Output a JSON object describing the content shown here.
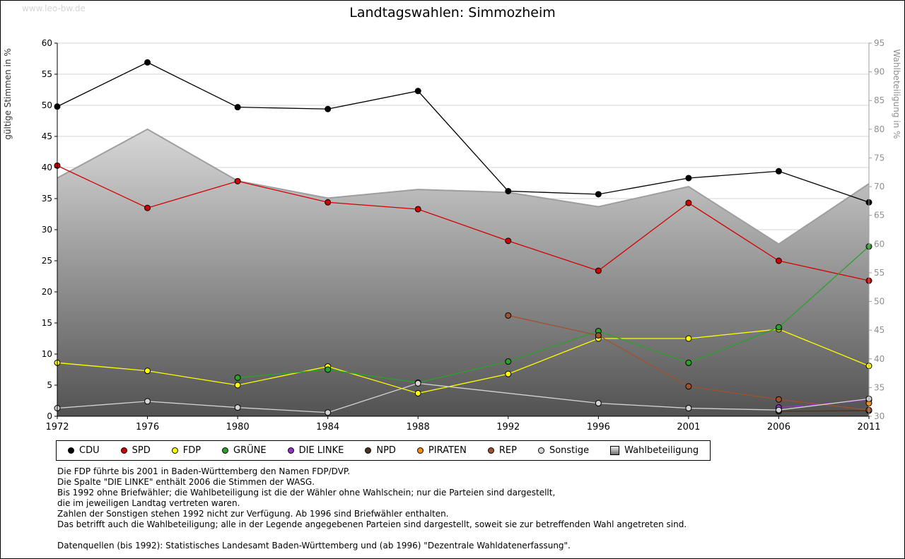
{
  "watermark": "www.leo-bw.de",
  "chart_data": {
    "type": "line",
    "title": "Landtagswahlen: Simmozheim",
    "x_categories": [
      "1972",
      "1976",
      "1980",
      "1984",
      "1988",
      "1992",
      "1996",
      "2001",
      "2006",
      "2011"
    ],
    "ylabel_left": "gültige Stimmen in %",
    "ylabel_right": "Wahlbeteiligung in %",
    "ylim_left": [
      0,
      60
    ],
    "ylim_right": [
      30,
      95
    ],
    "ytick_step": 5,
    "grid": "horizontal",
    "legend_position": "bottom",
    "area_series": {
      "name": "Wahlbeteiligung",
      "axis": "right",
      "line_color": "#9e9e9e",
      "legend_color": "#c8c8c8",
      "values": [
        71.5,
        80,
        71,
        68,
        69.5,
        69,
        66.5,
        70,
        60,
        70.5
      ]
    },
    "series": [
      {
        "name": "CDU",
        "color": "#000000",
        "values": [
          49.8,
          56.9,
          49.7,
          49.4,
          52.3,
          36.2,
          35.7,
          38.3,
          39.4,
          34.4
        ]
      },
      {
        "name": "SPD",
        "color": "#d40000",
        "values": [
          40.3,
          33.5,
          37.8,
          34.4,
          33.3,
          28.2,
          23.4,
          34.3,
          25.0,
          21.8
        ]
      },
      {
        "name": "FDP",
        "color": "#ffff00",
        "values": [
          8.6,
          7.3,
          5.0,
          8.0,
          3.7,
          6.8,
          12.5,
          12.5,
          14.0,
          8.1
        ]
      },
      {
        "name": "GRÜNE",
        "color": "#2ca02c",
        "values": [
          null,
          null,
          6.2,
          7.5,
          5.4,
          8.8,
          13.7,
          8.6,
          14.3,
          27.3
        ]
      },
      {
        "name": "DIE LINKE",
        "color": "#9333cc",
        "values": [
          null,
          null,
          null,
          null,
          null,
          null,
          null,
          null,
          1.4,
          2.6
        ]
      },
      {
        "name": "NPD",
        "color": "#4d3319",
        "values": [
          null,
          null,
          null,
          null,
          null,
          null,
          null,
          null,
          0.8,
          0.9
        ]
      },
      {
        "name": "PIRATEN",
        "color": "#ff8c00",
        "values": [
          null,
          null,
          null,
          null,
          null,
          null,
          null,
          null,
          null,
          2.1
        ]
      },
      {
        "name": "REP",
        "color": "#a0522d",
        "values": [
          null,
          null,
          null,
          null,
          null,
          16.2,
          13.0,
          4.8,
          2.7,
          1.0
        ]
      },
      {
        "name": "Sonstige",
        "color": "#d3d3d3",
        "values": [
          1.3,
          2.4,
          1.4,
          0.6,
          5.3,
          null,
          2.1,
          1.3,
          1.0,
          2.8
        ]
      }
    ]
  },
  "footnotes": [
    "Die FDP führte bis 2001 in Baden-Württemberg den Namen FDP/DVP.",
    "Die Spalte \"DIE LINKE\" enthält 2006 die Stimmen der WASG.",
    "Bis 1992 ohne Briefwähler; die Wahlbeteiligung ist die der Wähler ohne Wahlschein; nur die Parteien sind dargestellt,",
    "die im jeweiligen Landtag vertreten waren.",
    "Zahlen der Sonstigen stehen 1992 nicht zur Verfügung. Ab 1996 sind Briefwähler enthalten.",
    "Das betrifft auch die Wahlbeteiligung; alle in der Legende angegebenen Parteien sind dargestellt, soweit sie zur betreffenden Wahl angetreten sind.",
    "",
    "Datenquellen (bis 1992): Statistisches Landesamt Baden-Württemberg und (ab 1996) \"Dezentrale Wahldatenerfassung\"."
  ]
}
